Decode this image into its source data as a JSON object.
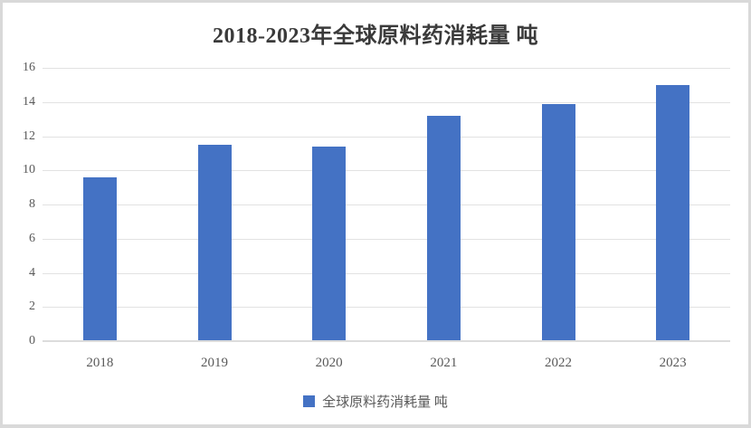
{
  "title": "2018-2023年全球原料药消耗量 吨",
  "legend": {
    "label": "全球原料药消耗量 吨"
  },
  "colors": {
    "bar": "#4472c4",
    "gridline": "#e2e2e2",
    "axis_line": "#dcdcdc",
    "tick_text": "#595959",
    "title_text": "#3a3a3a",
    "frame_border": "#d9d9d9"
  },
  "chart_data": {
    "type": "bar",
    "title": "2018-2023年全球原料药消耗量 吨",
    "categories": [
      "2018",
      "2019",
      "2020",
      "2021",
      "2022",
      "2023"
    ],
    "values": [
      9.6,
      11.5,
      11.4,
      13.2,
      13.9,
      15.0
    ],
    "series_name": "全球原料药消耗量 吨",
    "xlabel": "",
    "ylabel": "",
    "ylim": [
      0,
      16
    ],
    "yticks": [
      0,
      2,
      4,
      6,
      8,
      10,
      12,
      14,
      16
    ],
    "grid": true,
    "legend_position": "bottom",
    "bar_color": "#4472c4"
  }
}
